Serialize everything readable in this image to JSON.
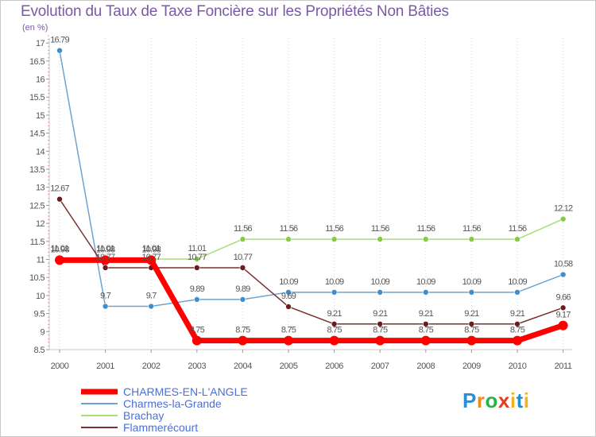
{
  "title": "Evolution du Taux de Taxe Foncière sur les Propriétés Non Bâties",
  "unit_label": "(en %)",
  "logo": {
    "text": "Proxiti"
  },
  "chart_data": {
    "type": "line",
    "title": "Evolution du Taux de Taxe Foncière sur les Propriétés Non Bâties",
    "ylabel": "(en %)",
    "xlabel": "",
    "ylim": [
      8.5,
      17.25
    ],
    "yticks": [
      "8.5",
      "9",
      "9.5",
      "10",
      "10.5",
      "11",
      "11.5",
      "12",
      "12.5",
      "13",
      "13.5",
      "14",
      "14.5",
      "15",
      "15.5",
      "16",
      "16.5",
      "17"
    ],
    "categories": [
      "2000",
      "2001",
      "2002",
      "2003",
      "2004",
      "2005",
      "2006",
      "2007",
      "2008",
      "2009",
      "2010",
      "2011"
    ],
    "series": [
      {
        "name": "CHARMES-EN-L'ANGLE",
        "color": "#ff0000",
        "marker": "#ff0000",
        "labelColor": "#555555",
        "width": 7,
        "values": [
          10.98,
          10.98,
          10.98,
          8.75,
          8.75,
          8.75,
          8.75,
          8.75,
          8.75,
          8.75,
          8.75,
          9.17
        ],
        "labels": [
          "10.98",
          "10.98",
          "10.98",
          "8.75",
          "8.75",
          "8.75",
          "8.75",
          "8.75",
          "8.75",
          "8.75",
          "8.75",
          "9.17"
        ]
      },
      {
        "name": "Charmes-la-Grande",
        "color": "#6ea3cf",
        "marker": "#3d8fd0",
        "labelColor": "#555555",
        "width": 1.5,
        "values": [
          16.79,
          9.7,
          9.7,
          9.89,
          9.89,
          10.09,
          10.09,
          10.09,
          10.09,
          10.09,
          10.09,
          10.58
        ],
        "labels": [
          "16.79",
          "9.7",
          "9.7",
          "9.89",
          "9.89",
          "10.09",
          "10.09",
          "10.09",
          "10.09",
          "10.09",
          "10.09",
          "10.58"
        ]
      },
      {
        "name": "Brachay",
        "color": "#a6df74",
        "marker": "#84cc44",
        "labelColor": "#555555",
        "width": 1.5,
        "values": [
          11.01,
          11.01,
          11.01,
          11.01,
          11.56,
          11.56,
          11.56,
          11.56,
          11.56,
          11.56,
          11.56,
          12.12
        ],
        "labels": [
          "11.01",
          "11.01",
          "11.01",
          "11.01",
          "11.56",
          "11.56",
          "11.56",
          "11.56",
          "11.56",
          "11.56",
          "11.56",
          "12.12"
        ]
      },
      {
        "name": "Flammerécourt",
        "color": "#7c2f2f",
        "marker": "#6a1c1c",
        "labelColor": "#555555",
        "width": 1.5,
        "values": [
          12.67,
          10.77,
          10.77,
          10.77,
          10.77,
          9.69,
          9.21,
          9.21,
          9.21,
          9.21,
          9.21,
          9.66
        ],
        "labels": [
          "12.67",
          "10.77",
          "10.77",
          "10.77",
          "10.77",
          "9.69",
          "9.21",
          "9.21",
          "9.21",
          "9.21",
          "9.21",
          "9.66"
        ]
      }
    ]
  }
}
